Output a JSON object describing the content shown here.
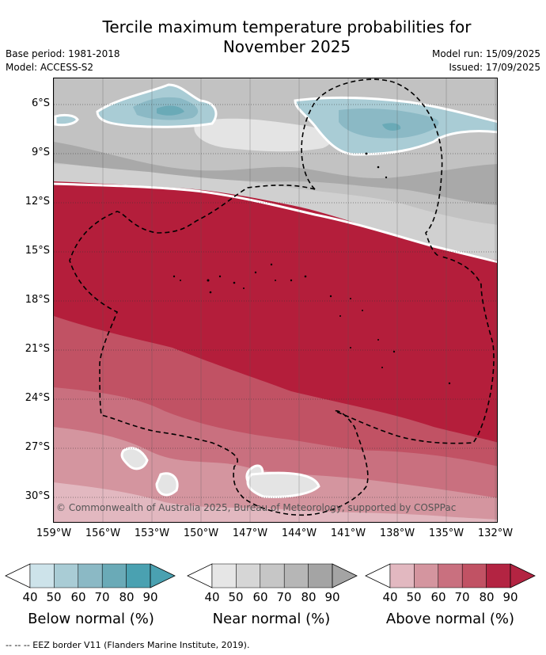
{
  "title_line1": "Tercile maximum temperature probabilities for",
  "title_line2": "November 2025",
  "base_period": "Base period: 1981-2018",
  "model": "Model: ACCESS-S2",
  "model_run": "Model run: 15/09/2025",
  "issued": "Issued: 17/09/2025",
  "copyright": "© Commonwealth of Australia 2025, Bureau of Meteorology, supported by COSPPac",
  "footer": "--  --  -- EEZ border V11 (Flanders Marine Institute, 2019).",
  "lat_labels": [
    "6°S",
    "9°S",
    "12°S",
    "15°S",
    "18°S",
    "21°S",
    "24°S",
    "27°S",
    "30°S"
  ],
  "lon_labels": [
    "159°W",
    "156°W",
    "153°W",
    "150°W",
    "147°W",
    "144°W",
    "141°W",
    "138°W",
    "135°W",
    "132°W"
  ],
  "colorbars": [
    {
      "title": "Below normal (%)",
      "ticks": [
        "40",
        "50",
        "60",
        "70",
        "80",
        "90"
      ],
      "colors": [
        "#ffffff",
        "#cde3ea",
        "#a9ccd5",
        "#8bb9c5",
        "#6aaab7",
        "#4aa1b1"
      ]
    },
    {
      "title": "Near normal (%)",
      "ticks": [
        "40",
        "50",
        "60",
        "70",
        "80",
        "90"
      ],
      "colors": [
        "#ffffff",
        "#e6e6e6",
        "#d6d6d6",
        "#c6c6c6",
        "#b6b6b6",
        "#a4a4a4"
      ]
    },
    {
      "title": "Above normal (%)",
      "ticks": [
        "40",
        "50",
        "60",
        "70",
        "80",
        "90"
      ],
      "colors": [
        "#ffffff",
        "#e2b8c0",
        "#d4959f",
        "#c9707f",
        "#c15264",
        "#b32442"
      ]
    }
  ],
  "map_colors": {
    "above_50": "#e2b8c0",
    "above_60": "#d4959f",
    "above_70": "#c9707f",
    "above_80": "#c15264",
    "above_90": "#b41e3b",
    "near_40": "#e4e4e4",
    "near_50": "#d0d0d0",
    "near_60": "#c2c2c2",
    "near_70": "#a9a9a9",
    "below_50": "#a9ccd5",
    "below_60": "#8bb9c5",
    "below_70": "#6aaab7"
  }
}
